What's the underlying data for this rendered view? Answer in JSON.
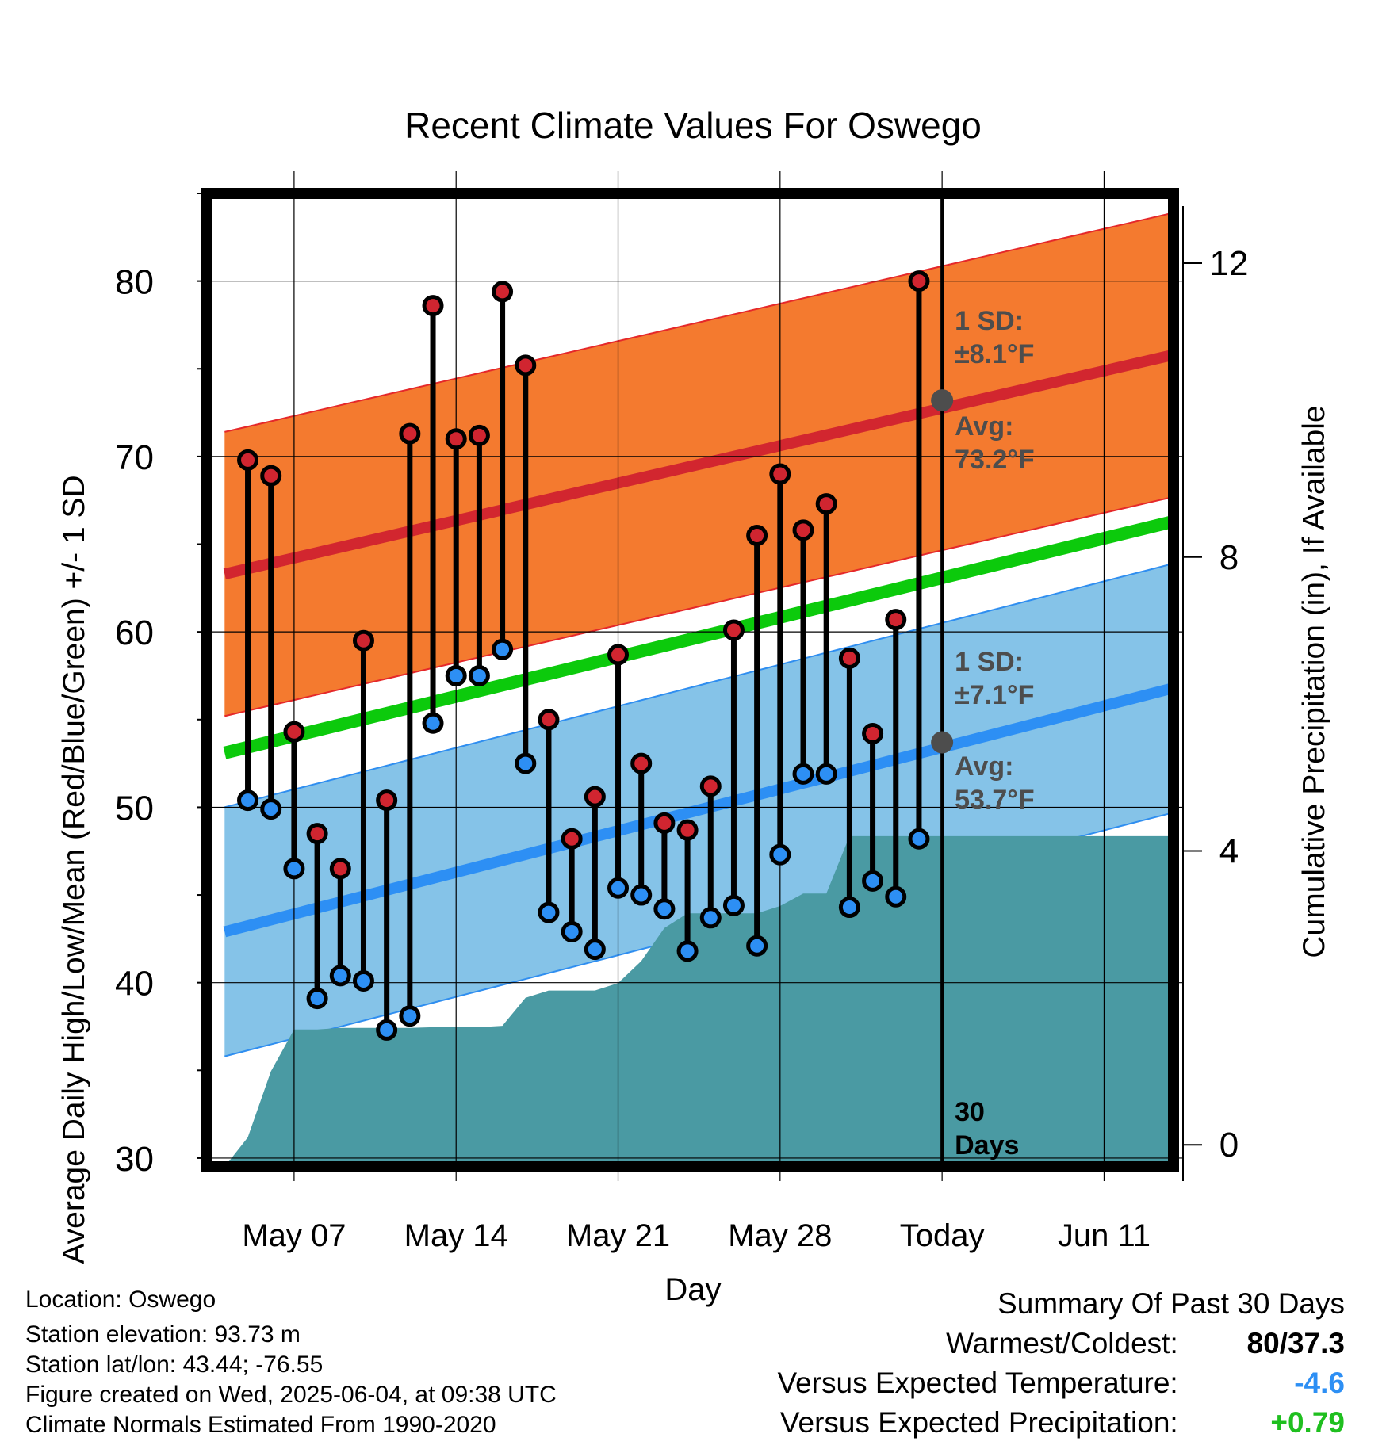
{
  "chart_data": {
    "type": "range-dot",
    "title": "Recent Climate Values For Oswego",
    "xlabel": "Day",
    "ylabel": "Average Daily High/Low/Mean (Red/Blue/Green) +/- 1 SD",
    "y2label": "Cumulative Precipitation (in), If Available",
    "ylim": [
      29.5,
      85
    ],
    "y2lim": [
      -0.3,
      12.95
    ],
    "yticks": [
      30,
      40,
      50,
      60,
      70,
      80
    ],
    "y2ticks": [
      0,
      4,
      8,
      12
    ],
    "xlim": [
      -0.8,
      41
    ],
    "xticks": [
      {
        "x": 3,
        "label": "May 07"
      },
      {
        "x": 10,
        "label": "May 14"
      },
      {
        "x": 17,
        "label": "May 21"
      },
      {
        "x": 24,
        "label": "May 28"
      },
      {
        "x": 31,
        "label": "Today"
      },
      {
        "x": 38,
        "label": "Jun 11"
      }
    ],
    "today_x": 31,
    "today_label": [
      "30",
      "Days"
    ],
    "normals": {
      "x": [
        0,
        41
      ],
      "high_avg": [
        63.3,
        75.8
      ],
      "high_sd": 8.1,
      "low_avg": [
        42.9,
        56.8
      ],
      "low_sd": 7.1,
      "mean": [
        53.1,
        66.3
      ]
    },
    "annotations": {
      "high_sd": [
        "1 SD:",
        "±8.1°F"
      ],
      "high_avg": [
        "Avg:",
        "73.2°F"
      ],
      "low_sd": [
        "1 SD:",
        "±7.1°F"
      ],
      "low_avg": [
        "Avg:",
        "53.7°F"
      ],
      "today_high_avg": 73.2,
      "today_low_avg": 53.7
    },
    "observations": {
      "x": [
        1,
        2,
        3,
        4,
        5,
        6,
        7,
        8,
        9,
        10,
        11,
        12,
        13,
        14,
        15,
        16,
        17,
        18,
        19,
        20,
        21,
        22,
        23,
        24,
        25,
        26,
        27,
        28,
        29,
        30
      ],
      "highs": [
        69.8,
        68.9,
        54.3,
        48.5,
        46.5,
        59.5,
        50.4,
        71.3,
        78.6,
        71.0,
        71.2,
        79.4,
        75.2,
        55.0,
        48.2,
        50.6,
        58.7,
        52.5,
        49.1,
        48.7,
        51.2,
        60.1,
        65.5,
        69.0,
        65.8,
        67.3,
        58.5,
        54.2,
        60.7,
        80.0
      ],
      "lows": [
        50.4,
        49.9,
        46.5,
        39.1,
        40.4,
        40.1,
        37.3,
        38.1,
        54.8,
        57.5,
        57.5,
        59.0,
        52.5,
        44.0,
        42.9,
        41.9,
        45.4,
        45.0,
        44.2,
        41.8,
        43.7,
        44.4,
        42.1,
        47.3,
        51.9,
        51.9,
        44.3,
        45.8,
        44.9,
        48.2
      ]
    },
    "precipitation": {
      "x": [
        0,
        1,
        2,
        3,
        4,
        5,
        6,
        7,
        8,
        9,
        10,
        11,
        12,
        13,
        14,
        15,
        16,
        17,
        18,
        19,
        20,
        21,
        22,
        23,
        24,
        25,
        26,
        27,
        28,
        29,
        30,
        31,
        41
      ],
      "values": [
        -0.3,
        0.1,
        1.0,
        1.57,
        1.57,
        1.59,
        1.59,
        1.59,
        1.59,
        1.6,
        1.6,
        1.6,
        1.62,
        2.0,
        2.1,
        2.1,
        2.1,
        2.2,
        2.5,
        2.95,
        3.15,
        3.15,
        3.15,
        3.15,
        3.25,
        3.42,
        3.42,
        4.2,
        4.2,
        4.2,
        4.2,
        4.2,
        4.2
      ]
    },
    "colors": {
      "high_band": "#f47a2f",
      "high_edge": "#e5282a",
      "high_avg": "#d2262f",
      "low_band": "#85c3e8",
      "low_edge": "#2f8ef0",
      "low_avg": "#2d8ff4",
      "mean": "#0cca0c",
      "precip": "#4a9aa3",
      "high_dot": "#d02530",
      "low_dot": "#2d8ff4",
      "annotation": "#4d4d4d"
    },
    "grid": true
  },
  "footer": {
    "location": "Location: Oswego",
    "elevation": "Station elevation: 93.73 m",
    "latlon": "Station lat/lon: 43.44; -76.55",
    "created": "Figure created on Wed, 2025-06-04, at 09:38 UTC",
    "normals": "Climate Normals Estimated From 1990-2020"
  },
  "summary": {
    "title": "Summary Of Past 30 Days",
    "warmest_label": "Warmest/Coldest:",
    "warmest_value": "80/37.3",
    "temp_label": "Versus Expected Temperature:",
    "temp_value": "-4.6",
    "temp_color": "#2d8ff4",
    "precip_label": "Versus Expected Precipitation:",
    "precip_value": "+0.79",
    "precip_color": "#1fbf1f"
  }
}
